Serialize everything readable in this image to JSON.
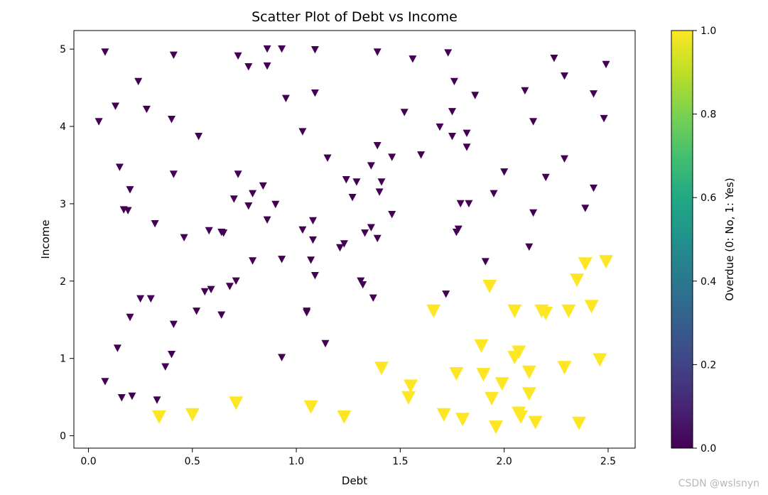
{
  "watermark": "CSDN @wslsnyn",
  "chart_data": {
    "type": "scatter",
    "title": "Scatter Plot of Debt vs Income",
    "xlabel": "Debt",
    "ylabel": "Income",
    "xlim": [
      -0.07,
      2.63
    ],
    "ylim": [
      -0.16,
      5.24
    ],
    "x_ticks": [
      0.0,
      0.5,
      1.0,
      1.5,
      2.0,
      2.5
    ],
    "x_tick_labels": [
      "0.0",
      "0.5",
      "1.0",
      "1.5",
      "2.0",
      "2.5"
    ],
    "y_ticks": [
      0,
      1,
      2,
      3,
      4,
      5
    ],
    "y_tick_labels": [
      "0",
      "1",
      "2",
      "3",
      "4",
      "5"
    ],
    "grid": false,
    "marker": "triangle-down",
    "colorbar": {
      "label": "Overdue (0: No, 1: Yes)",
      "colormap": "viridis",
      "range": [
        0.0,
        1.0
      ],
      "ticks": [
        0.0,
        0.2,
        0.4,
        0.6,
        0.8,
        1.0
      ],
      "tick_labels": [
        "0.0",
        "0.2",
        "0.4",
        "0.6",
        "0.8",
        "1.0"
      ]
    },
    "colors": {
      "not_overdue": "#440154",
      "overdue": "#fde725"
    },
    "series": [
      {
        "overdue": 0,
        "points": [
          [
            0.08,
            4.96
          ],
          [
            0.41,
            4.92
          ],
          [
            0.72,
            4.91
          ],
          [
            0.86,
            5.0
          ],
          [
            0.93,
            5.0
          ],
          [
            1.09,
            4.99
          ],
          [
            0.77,
            4.77
          ],
          [
            0.86,
            4.78
          ],
          [
            1.39,
            4.96
          ],
          [
            1.56,
            4.87
          ],
          [
            1.73,
            4.95
          ],
          [
            2.24,
            4.88
          ],
          [
            2.49,
            4.8
          ],
          [
            2.29,
            4.65
          ],
          [
            0.24,
            4.58
          ],
          [
            1.76,
            4.58
          ],
          [
            1.09,
            4.43
          ],
          [
            0.95,
            4.36
          ],
          [
            2.1,
            4.46
          ],
          [
            2.43,
            4.42
          ],
          [
            1.86,
            4.4
          ],
          [
            0.13,
            4.26
          ],
          [
            0.28,
            4.22
          ],
          [
            1.52,
            4.18
          ],
          [
            1.75,
            4.19
          ],
          [
            2.48,
            4.1
          ],
          [
            0.05,
            4.06
          ],
          [
            0.4,
            4.09
          ],
          [
            2.14,
            4.06
          ],
          [
            1.69,
            3.99
          ],
          [
            1.03,
            3.93
          ],
          [
            1.75,
            3.87
          ],
          [
            1.82,
            3.91
          ],
          [
            0.53,
            3.87
          ],
          [
            1.39,
            3.75
          ],
          [
            1.82,
            3.73
          ],
          [
            1.6,
            3.63
          ],
          [
            1.46,
            3.6
          ],
          [
            1.15,
            3.59
          ],
          [
            2.29,
            3.58
          ],
          [
            0.15,
            3.47
          ],
          [
            1.36,
            3.49
          ],
          [
            2.0,
            3.41
          ],
          [
            0.41,
            3.38
          ],
          [
            0.72,
            3.38
          ],
          [
            2.2,
            3.34
          ],
          [
            1.24,
            3.31
          ],
          [
            1.29,
            3.28
          ],
          [
            1.41,
            3.28
          ],
          [
            0.84,
            3.23
          ],
          [
            0.2,
            3.18
          ],
          [
            2.43,
            3.2
          ],
          [
            1.4,
            3.15
          ],
          [
            0.79,
            3.13
          ],
          [
            1.95,
            3.13
          ],
          [
            1.27,
            3.08
          ],
          [
            0.7,
            3.06
          ],
          [
            0.9,
            2.99
          ],
          [
            1.79,
            3.0
          ],
          [
            1.83,
            3.0
          ],
          [
            0.77,
            2.97
          ],
          [
            2.39,
            2.94
          ],
          [
            0.17,
            2.92
          ],
          [
            0.19,
            2.91
          ],
          [
            1.46,
            2.86
          ],
          [
            2.14,
            2.88
          ],
          [
            0.86,
            2.79
          ],
          [
            1.08,
            2.78
          ],
          [
            0.32,
            2.74
          ],
          [
            1.36,
            2.69
          ],
          [
            1.03,
            2.66
          ],
          [
            0.58,
            2.65
          ],
          [
            1.78,
            2.67
          ],
          [
            0.64,
            2.63
          ],
          [
            0.65,
            2.62
          ],
          [
            1.33,
            2.62
          ],
          [
            1.77,
            2.63
          ],
          [
            0.46,
            2.56
          ],
          [
            1.39,
            2.55
          ],
          [
            1.08,
            2.53
          ],
          [
            1.23,
            2.48
          ],
          [
            1.21,
            2.43
          ],
          [
            2.12,
            2.44
          ],
          [
            0.93,
            2.28
          ],
          [
            0.79,
            2.26
          ],
          [
            1.07,
            2.27
          ],
          [
            1.91,
            2.25
          ],
          [
            1.09,
            2.07
          ],
          [
            0.71,
            2.0
          ],
          [
            1.31,
            2.0
          ],
          [
            1.32,
            1.95
          ],
          [
            0.68,
            1.93
          ],
          [
            0.59,
            1.89
          ],
          [
            0.56,
            1.86
          ],
          [
            1.72,
            1.83
          ],
          [
            0.25,
            1.77
          ],
          [
            0.3,
            1.77
          ],
          [
            1.37,
            1.78
          ],
          [
            0.52,
            1.61
          ],
          [
            1.05,
            1.61
          ],
          [
            1.05,
            1.59
          ],
          [
            0.64,
            1.56
          ],
          [
            0.2,
            1.53
          ],
          [
            0.41,
            1.44
          ],
          [
            1.14,
            1.19
          ],
          [
            0.14,
            1.13
          ],
          [
            0.4,
            1.05
          ],
          [
            0.93,
            1.01
          ],
          [
            0.37,
            0.89
          ],
          [
            0.08,
            0.7
          ],
          [
            0.16,
            0.49
          ],
          [
            0.21,
            0.51
          ],
          [
            0.33,
            0.46
          ]
        ]
      },
      {
        "overdue": 1,
        "points": [
          [
            2.49,
            2.25
          ],
          [
            2.39,
            2.22
          ],
          [
            2.35,
            2.01
          ],
          [
            1.93,
            1.93
          ],
          [
            2.42,
            1.67
          ],
          [
            1.66,
            1.61
          ],
          [
            2.05,
            1.61
          ],
          [
            2.18,
            1.61
          ],
          [
            2.31,
            1.61
          ],
          [
            2.2,
            1.58
          ],
          [
            1.89,
            1.16
          ],
          [
            2.07,
            1.08
          ],
          [
            2.05,
            1.01
          ],
          [
            2.46,
            0.98
          ],
          [
            1.41,
            0.87
          ],
          [
            2.29,
            0.88
          ],
          [
            2.12,
            0.82
          ],
          [
            1.77,
            0.8
          ],
          [
            1.9,
            0.79
          ],
          [
            1.99,
            0.67
          ],
          [
            1.55,
            0.64
          ],
          [
            2.12,
            0.54
          ],
          [
            1.54,
            0.49
          ],
          [
            1.94,
            0.48
          ],
          [
            0.71,
            0.42
          ],
          [
            1.07,
            0.37
          ],
          [
            2.07,
            0.29
          ],
          [
            0.5,
            0.27
          ],
          [
            1.71,
            0.27
          ],
          [
            0.34,
            0.24
          ],
          [
            1.23,
            0.24
          ],
          [
            2.08,
            0.24
          ],
          [
            1.8,
            0.21
          ],
          [
            2.15,
            0.17
          ],
          [
            2.36,
            0.16
          ],
          [
            1.96,
            0.11
          ]
        ]
      }
    ]
  }
}
